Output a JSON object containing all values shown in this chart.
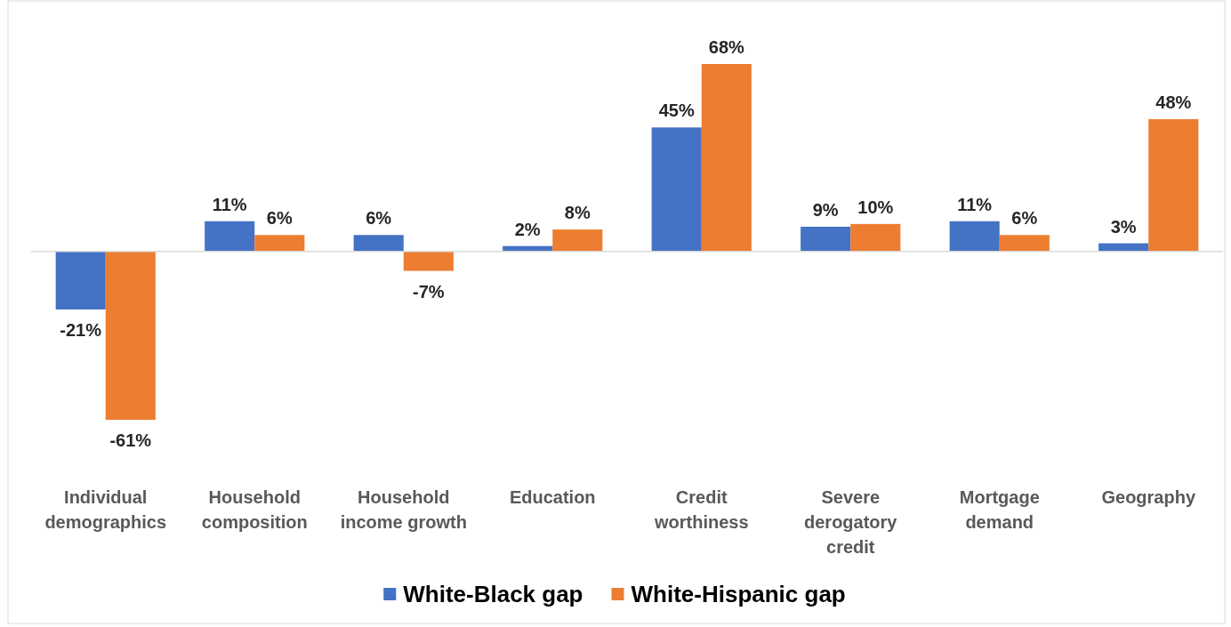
{
  "chart_data": {
    "type": "bar",
    "categories": [
      "Individual demographics",
      "Household composition",
      "Household income growth",
      "Education",
      "Credit worthiness",
      "Severe derogatory credit",
      "Mortgage demand",
      "Geography"
    ],
    "series": [
      {
        "name": "White-Black gap",
        "color": "#4472c4",
        "values": [
          -21,
          11,
          6,
          2,
          45,
          9,
          11,
          3
        ],
        "value_labels": [
          "-21%",
          "11%",
          "6%",
          "2%",
          "45%",
          "9%",
          "11%",
          "3%"
        ]
      },
      {
        "name": "White-Hispanic gap",
        "color": "#ed7d31",
        "values": [
          -61,
          6,
          -7,
          8,
          68,
          10,
          6,
          48
        ],
        "value_labels": [
          "-61%",
          "6%",
          "-7%",
          "8%",
          "68%",
          "10%",
          "6%",
          "48%"
        ]
      }
    ],
    "legend": "bottom"
  }
}
